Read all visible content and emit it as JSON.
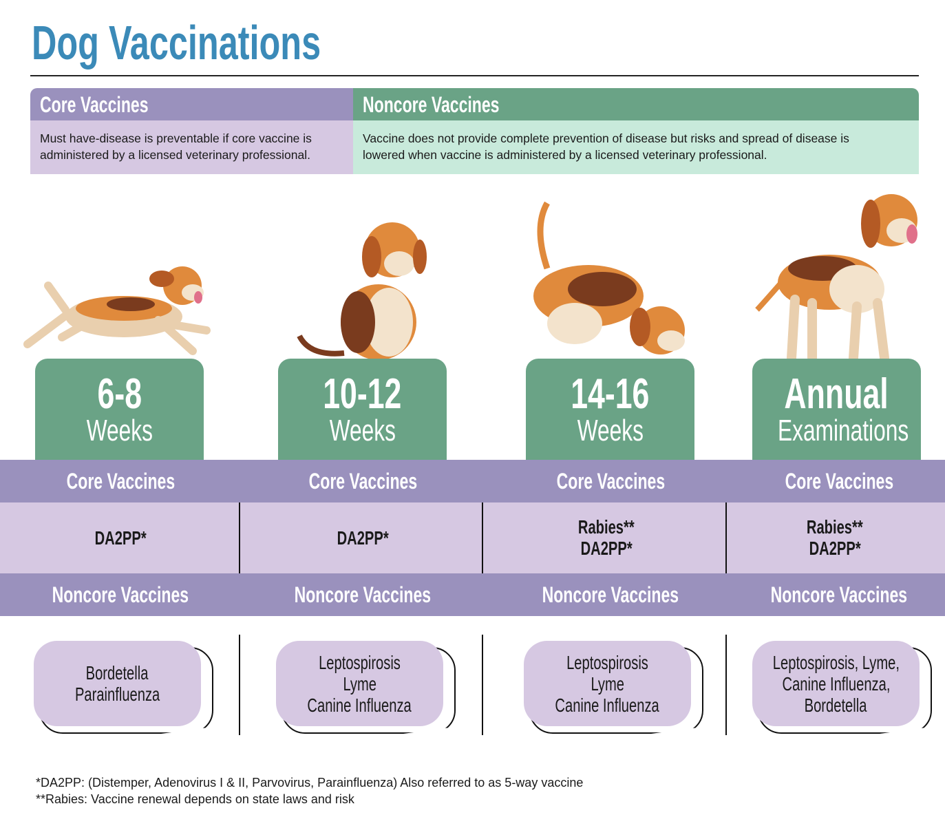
{
  "title": "Dog Vaccinations",
  "legend": {
    "core": {
      "heading": "Core Vaccines",
      "description": "Must have-disease is preventable if core vaccine is administered by a licensed veterinary professional."
    },
    "noncore": {
      "heading": "Noncore Vaccines",
      "description": "Vaccine does not provide complete prevention of disease but risks and spread of disease is lowered when vaccine is administered by a licensed veterinary professional."
    }
  },
  "colors": {
    "title": "#3b8ab8",
    "core_dark": "#9a91bd",
    "core_light": "#d6c8e2",
    "noncore_dark": "#6aa386",
    "noncore_light": "#c8eadb"
  },
  "stages": [
    {
      "age": "6-8",
      "unit": "Weeks",
      "core_label": "Core Vaccines",
      "core": [
        "DA2PP*"
      ],
      "noncore_label": "Noncore Vaccines",
      "noncore": [
        "Bordetella",
        "Parainfluenza"
      ]
    },
    {
      "age": "10-12",
      "unit": "Weeks",
      "core_label": "Core Vaccines",
      "core": [
        "DA2PP*"
      ],
      "noncore_label": "Noncore Vaccines",
      "noncore": [
        "Leptospirosis",
        "Lyme",
        "Canine Influenza"
      ]
    },
    {
      "age": "14-16",
      "unit": "Weeks",
      "core_label": "Core Vaccines",
      "core": [
        "Rabies**",
        "DA2PP*"
      ],
      "noncore_label": "Noncore Vaccines",
      "noncore": [
        "Leptospirosis",
        "Lyme",
        "Canine Influenza"
      ]
    },
    {
      "age": "Annual",
      "unit": "Examinations",
      "core_label": "Core Vaccines",
      "core": [
        "Rabies**",
        "DA2PP*"
      ],
      "noncore_label": "Noncore Vaccines",
      "noncore": [
        "Leptospirosis, Lyme,",
        "Canine Influenza,",
        "Bordetella"
      ]
    }
  ],
  "footnotes": [
    "*DA2PP: (Distemper, Adenovirus I & II, Parvovirus, Parainfluenza) Also referred to as 5-way vaccine",
    "**Rabies: Vaccine renewal depends on state laws and risk"
  ]
}
